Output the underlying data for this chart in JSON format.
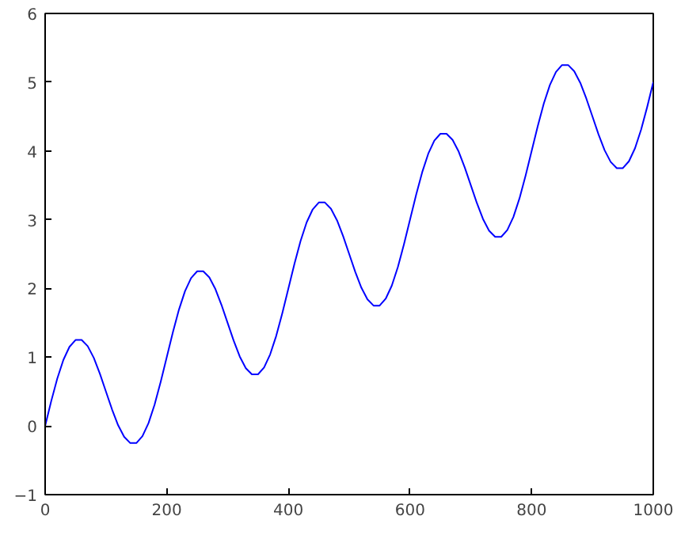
{
  "chart_data": {
    "type": "line",
    "x": [
      0,
      10,
      20,
      30,
      40,
      50,
      60,
      70,
      80,
      90,
      100,
      110,
      120,
      130,
      140,
      150,
      160,
      170,
      180,
      190,
      200,
      210,
      220,
      230,
      240,
      250,
      260,
      270,
      280,
      290,
      300,
      310,
      320,
      330,
      340,
      350,
      360,
      370,
      380,
      390,
      400,
      410,
      420,
      430,
      440,
      450,
      460,
      470,
      480,
      490,
      500,
      510,
      520,
      530,
      540,
      550,
      560,
      570,
      580,
      590,
      600,
      610,
      620,
      630,
      640,
      650,
      660,
      670,
      680,
      690,
      700,
      710,
      720,
      730,
      740,
      750,
      760,
      770,
      780,
      790,
      800,
      810,
      820,
      830,
      840,
      850,
      860,
      870,
      880,
      890,
      900,
      910,
      920,
      930,
      940,
      950,
      960,
      970,
      980,
      990,
      1000
    ],
    "series": [
      {
        "color": "#0000ff",
        "values": [
          0,
          0.36,
          0.69,
          0.96,
          1.15,
          1.25,
          1.25,
          1.16,
          0.99,
          0.76,
          0.5,
          0.24,
          0.01,
          -0.16,
          -0.25,
          -0.25,
          -0.15,
          0.04,
          0.31,
          0.64,
          1.0,
          1.36,
          1.69,
          1.96,
          2.15,
          2.25,
          2.25,
          2.16,
          1.99,
          1.76,
          1.5,
          1.24,
          1.01,
          0.84,
          0.75,
          0.75,
          0.85,
          1.04,
          1.31,
          1.64,
          2.0,
          2.36,
          2.69,
          2.96,
          3.15,
          3.25,
          3.25,
          3.16,
          2.99,
          2.76,
          2.5,
          2.24,
          2.01,
          1.84,
          1.75,
          1.75,
          1.85,
          2.04,
          2.31,
          2.64,
          3.0,
          3.36,
          3.69,
          3.96,
          4.15,
          4.25,
          4.25,
          4.16,
          3.99,
          3.76,
          3.5,
          3.24,
          3.01,
          2.84,
          2.75,
          2.75,
          2.85,
          3.04,
          3.31,
          3.64,
          4.0,
          4.36,
          4.69,
          4.96,
          5.15,
          5.25,
          5.25,
          5.16,
          4.99,
          4.76,
          4.5,
          4.24,
          4.01,
          3.84,
          3.75,
          3.75,
          3.85,
          4.04,
          4.31,
          4.64,
          5.0
        ]
      }
    ],
    "xlim": [
      0,
      1000
    ],
    "ylim": [
      -1,
      6
    ],
    "xticks": [
      0,
      200,
      400,
      600,
      800,
      1000
    ],
    "yticks": [
      -1,
      0,
      1,
      2,
      3,
      4,
      5,
      6
    ],
    "grid": false
  }
}
